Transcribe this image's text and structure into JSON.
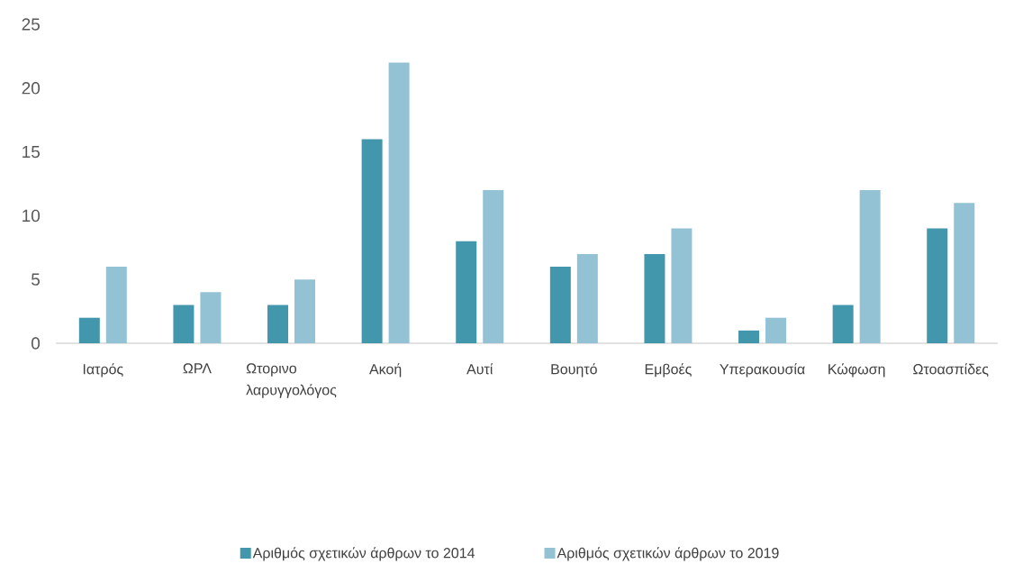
{
  "chart_data": {
    "type": "bar",
    "categories": [
      "Ιατρός",
      "ΩΡΛ",
      "Ωτορινο λαρυγγολόγος",
      "Ακοή",
      "Αυτί",
      "Βουητό",
      "Εμβοές",
      "Υπερακουσία",
      "Κώφωση",
      "Ωτοασπίδες"
    ],
    "series": [
      {
        "name": "Αριθμός σχετικών άρθρων το 2014",
        "color": "#4397ad",
        "values": [
          2,
          3,
          3,
          16,
          8,
          6,
          7,
          1,
          3,
          9
        ]
      },
      {
        "name": "Αριθμός σχετικών άρθρων το 2019",
        "color": "#93c2d5",
        "values": [
          6,
          4,
          5,
          22,
          12,
          7,
          9,
          2,
          12,
          11
        ]
      }
    ],
    "ylim": [
      0,
      25
    ],
    "yticks": [
      0,
      5,
      10,
      15,
      20,
      25
    ],
    "legend": "bottom"
  }
}
